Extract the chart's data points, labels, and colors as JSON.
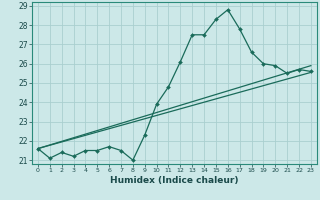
{
  "xlabel": "Humidex (Indice chaleur)",
  "bg_color": "#cce8e8",
  "grid_color": "#aacfcf",
  "line_color": "#1a6b5a",
  "xlim_min": -0.5,
  "xlim_max": 23.5,
  "ylim_min": 20.8,
  "ylim_max": 29.2,
  "xticks": [
    0,
    1,
    2,
    3,
    4,
    5,
    6,
    7,
    8,
    9,
    10,
    11,
    12,
    13,
    14,
    15,
    16,
    17,
    18,
    19,
    20,
    21,
    22,
    23
  ],
  "yticks": [
    21,
    22,
    23,
    24,
    25,
    26,
    27,
    28,
    29
  ],
  "series1_x": [
    0,
    1,
    2,
    3,
    4,
    5,
    6,
    7,
    8,
    9,
    10,
    11,
    12,
    13,
    14,
    15,
    16,
    17,
    18,
    19,
    20,
    21,
    22,
    23
  ],
  "series1_y": [
    21.6,
    21.1,
    21.4,
    21.2,
    21.5,
    21.5,
    21.7,
    21.5,
    21.0,
    22.3,
    23.9,
    24.8,
    26.1,
    27.5,
    27.5,
    28.3,
    28.8,
    27.8,
    26.6,
    26.0,
    25.9,
    25.5,
    25.7,
    25.6
  ],
  "series2_x": [
    0,
    23
  ],
  "series2_y": [
    21.6,
    25.9
  ],
  "series3_x": [
    0,
    23
  ],
  "series3_y": [
    21.6,
    25.55
  ]
}
